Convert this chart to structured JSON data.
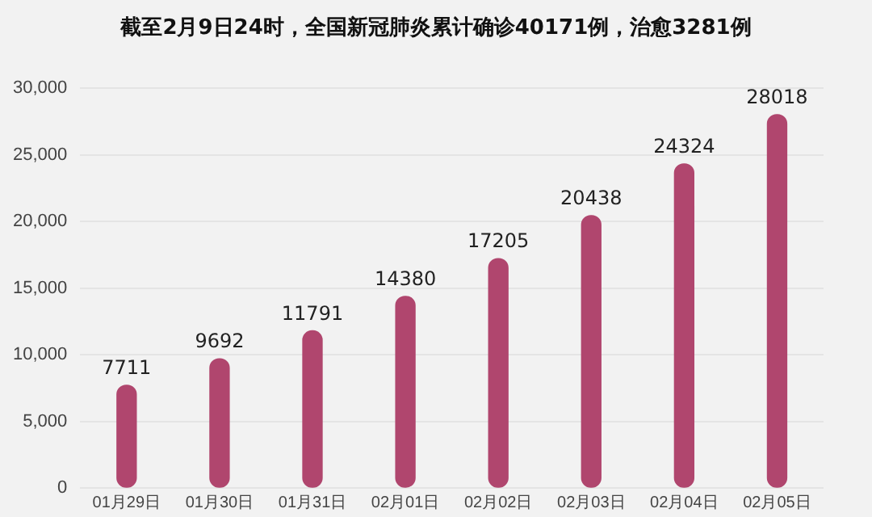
{
  "chart_data": {
    "type": "bar",
    "title": "截至2月9日24时，全国新冠肺炎累计确诊40171例，治愈3281例",
    "categories": [
      "01月29日",
      "01月30日",
      "01月31日",
      "02月01日",
      "02月02日",
      "02月03日",
      "02月04日",
      "02月05日"
    ],
    "values": [
      7711,
      9692,
      11791,
      14380,
      17205,
      20438,
      24324,
      28018
    ],
    "color": "#b0466e",
    "ylim": [
      0,
      30000
    ],
    "yticks": [
      {
        "value": 0,
        "label": "0"
      },
      {
        "value": 5000,
        "label": "5,000"
      },
      {
        "value": 10000,
        "label": "10,000"
      },
      {
        "value": 15000,
        "label": "15,000"
      },
      {
        "value": 20000,
        "label": "20,000"
      },
      {
        "value": 25000,
        "label": "25,000"
      },
      {
        "value": 30000,
        "label": "30,000"
      }
    ],
    "grid": "y",
    "data_labels": true
  }
}
